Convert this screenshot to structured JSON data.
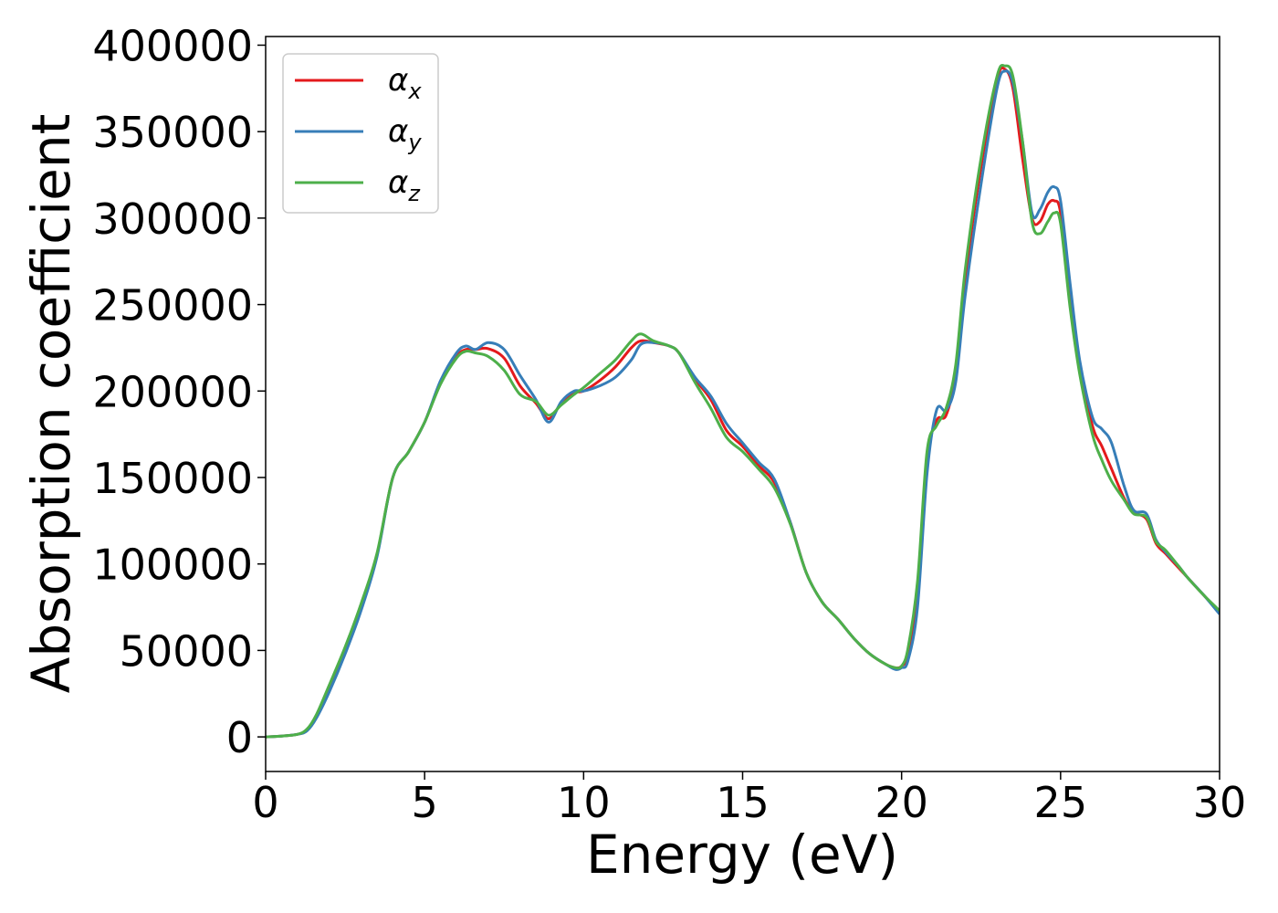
{
  "chart_data": {
    "type": "line",
    "title": "",
    "xlabel": "Energy (eV)",
    "ylabel": "Absorption coefficient",
    "xlim": [
      0,
      30
    ],
    "ylim": [
      -20000,
      405000
    ],
    "xticks": [
      0,
      5,
      10,
      15,
      20,
      25,
      30
    ],
    "xtick_labels": [
      "0",
      "5",
      "10",
      "15",
      "20",
      "25",
      "30"
    ],
    "yticks": [
      0,
      50000,
      100000,
      150000,
      200000,
      250000,
      300000,
      350000,
      400000
    ],
    "ytick_labels": [
      "0",
      "50000",
      "100000",
      "150000",
      "200000",
      "250000",
      "300000",
      "350000",
      "400000"
    ],
    "grid": false,
    "legend_position": "top-left",
    "series": [
      {
        "name": "α_x",
        "legend_base": "α",
        "legend_sub": "x",
        "color": "#e41a1c",
        "x": [
          0,
          0.5,
          1,
          1.3,
          1.6,
          2,
          2.5,
          3,
          3.5,
          4,
          4.5,
          5,
          5.5,
          6,
          6.3,
          6.6,
          7,
          7.5,
          8,
          8.5,
          8.9,
          9.3,
          9.7,
          10,
          10.5,
          11,
          11.5,
          11.8,
          12.2,
          12.7,
          13,
          13.5,
          14,
          14.5,
          15,
          15.5,
          16,
          16.5,
          17,
          17.5,
          18,
          18.5,
          19,
          19.5,
          19.8,
          20,
          20.2,
          20.5,
          20.8,
          21.1,
          21.4,
          21.7,
          22,
          22.5,
          23,
          23.25,
          23.5,
          23.8,
          24.1,
          24.35,
          24.6,
          24.8,
          25,
          25.3,
          25.6,
          26,
          26.3,
          26.6,
          27,
          27.3,
          27.7,
          28,
          28.3,
          28.7,
          29,
          29.5,
          30
        ],
        "y": [
          0,
          500,
          1500,
          4000,
          12000,
          28000,
          50000,
          75000,
          105000,
          150000,
          165000,
          182000,
          205000,
          220000,
          224000,
          224000,
          224500,
          219000,
          203000,
          193000,
          184000,
          193000,
          199000,
          200000,
          206000,
          214000,
          225000,
          229000,
          228000,
          226000,
          222000,
          207000,
          195000,
          177000,
          168000,
          157000,
          147000,
          124000,
          95000,
          78000,
          68000,
          57000,
          48000,
          42000,
          40000,
          41000,
          48000,
          85000,
          160000,
          183000,
          186000,
          210000,
          265000,
          330000,
          380000,
          386000,
          375000,
          335000,
          300000,
          298000,
          308000,
          310000,
          303000,
          255000,
          215000,
          180000,
          168000,
          155000,
          138000,
          130000,
          126000,
          112000,
          106000,
          98000,
          92000,
          82000,
          72000
        ]
      },
      {
        "name": "α_y",
        "legend_base": "α",
        "legend_sub": "y",
        "color": "#377eb8",
        "x": [
          0,
          0.5,
          1,
          1.3,
          1.6,
          2,
          2.5,
          3,
          3.5,
          4,
          4.5,
          5,
          5.5,
          6,
          6.3,
          6.6,
          7,
          7.5,
          8,
          8.5,
          8.9,
          9.3,
          9.7,
          10,
          10.5,
          11,
          11.5,
          11.8,
          12.2,
          12.7,
          13,
          13.5,
          14,
          14.5,
          15,
          15.5,
          16,
          16.5,
          17,
          17.5,
          18,
          18.5,
          19,
          19.5,
          19.8,
          20,
          20.2,
          20.5,
          20.8,
          21.1,
          21.4,
          21.7,
          22,
          22.5,
          23,
          23.25,
          23.5,
          23.8,
          24.1,
          24.35,
          24.6,
          24.8,
          25,
          25.3,
          25.6,
          26,
          26.3,
          26.6,
          27,
          27.3,
          27.7,
          28,
          28.3,
          28.7,
          29,
          29.5,
          30
        ],
        "y": [
          0,
          500,
          1500,
          3500,
          11000,
          26000,
          48000,
          73000,
          104000,
          150000,
          165000,
          182000,
          206000,
          222000,
          226000,
          224000,
          228000,
          224000,
          209000,
          195000,
          182000,
          194000,
          200000,
          200000,
          203000,
          208000,
          218000,
          227000,
          228000,
          226000,
          222000,
          208000,
          197000,
          181000,
          170000,
          159000,
          149000,
          124000,
          95000,
          78000,
          68000,
          57000,
          48000,
          42000,
          39000,
          40000,
          44000,
          75000,
          152000,
          189000,
          189000,
          205000,
          255000,
          320000,
          375000,
          385000,
          378000,
          345000,
          303000,
          305000,
          315000,
          318000,
          310000,
          262000,
          218000,
          185000,
          178000,
          170000,
          145000,
          131000,
          129000,
          114000,
          107000,
          99000,
          92000,
          82000,
          71000
        ]
      },
      {
        "name": "α_z",
        "legend_base": "α",
        "legend_sub": "z",
        "color": "#4daf4a",
        "x": [
          0,
          0.5,
          1,
          1.3,
          1.6,
          2,
          2.5,
          3,
          3.5,
          4,
          4.5,
          5,
          5.5,
          6,
          6.3,
          6.6,
          7,
          7.5,
          8,
          8.5,
          8.9,
          9.3,
          9.7,
          10,
          10.5,
          11,
          11.5,
          11.8,
          12.2,
          12.7,
          13,
          13.5,
          14,
          14.5,
          15,
          15.5,
          16,
          16.5,
          17,
          17.5,
          18,
          18.5,
          19,
          19.5,
          19.8,
          20,
          20.2,
          20.5,
          20.8,
          21.1,
          21.4,
          21.7,
          22,
          22.5,
          23,
          23.25,
          23.5,
          23.8,
          24.1,
          24.35,
          24.6,
          24.8,
          25,
          25.3,
          25.6,
          26,
          26.3,
          26.6,
          27,
          27.3,
          27.7,
          28,
          28.3,
          28.7,
          29,
          29.5,
          30
        ],
        "y": [
          0,
          500,
          1500,
          4500,
          13000,
          30000,
          52000,
          77000,
          106000,
          150000,
          165000,
          182000,
          204000,
          219000,
          223000,
          222000,
          220000,
          212000,
          198000,
          194000,
          186000,
          192000,
          198000,
          202000,
          210000,
          218000,
          229000,
          233000,
          229000,
          226000,
          222000,
          205000,
          190000,
          173000,
          165000,
          155000,
          144000,
          123000,
          95000,
          78000,
          68000,
          57000,
          48000,
          42000,
          40000,
          41000,
          51000,
          90000,
          165000,
          180000,
          190000,
          215000,
          270000,
          335000,
          382000,
          388000,
          382000,
          345000,
          298000,
          291000,
          298000,
          303000,
          297000,
          248000,
          210000,
          175000,
          160000,
          148000,
          137000,
          129000,
          127000,
          113000,
          108000,
          99000,
          92000,
          82000,
          73000
        ]
      }
    ]
  }
}
